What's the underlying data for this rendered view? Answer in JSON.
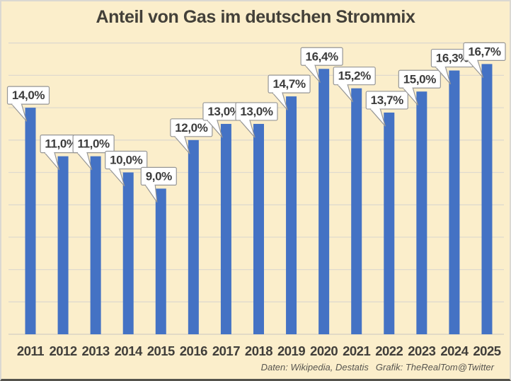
{
  "title": "Anteil von Gas im deutschen Strommix",
  "footer": {
    "data_credit": "Daten: Wikipedia, Destatis",
    "graphic_credit": "Grafik: TheRealTom@Twitter"
  },
  "colors": {
    "background": "#FBEECB",
    "bar": "#4472C4",
    "grid": "#DFDACE",
    "axis_line": "#D4CFC2",
    "text": "#403E3A",
    "callout_bg": "#FFFFFF",
    "callout_border": "#969696",
    "callout_text": "#3C3C3C",
    "frame_border": "#DBD8D2",
    "frame_border_bottom": "#54524C"
  },
  "chart_data": {
    "type": "bar",
    "title": "Anteil von Gas im deutschen Strommix",
    "categories": [
      "2011",
      "2012",
      "2013",
      "2014",
      "2015",
      "2016",
      "2017",
      "2018",
      "2019",
      "2020",
      "2021",
      "2022",
      "2023",
      "2024",
      "2025"
    ],
    "values": [
      14.0,
      11.0,
      11.0,
      10.0,
      9.0,
      12.0,
      13.0,
      13.0,
      14.7,
      16.4,
      15.2,
      13.7,
      15.0,
      16.3,
      16.7
    ],
    "value_labels": [
      "14,0%",
      "11,0%",
      "11,0%",
      "10,0%",
      "9,0%",
      "12,0%",
      "13,0%",
      "13,0%",
      "14,7%",
      "16,4%",
      "15,2%",
      "13,7%",
      "15,0%",
      "16,3%",
      "16,7%"
    ],
    "unit": "%",
    "xlabel": "",
    "ylabel": "",
    "ylim": [
      0,
      18
    ],
    "grid_step": 2,
    "gridlines": "horizontal",
    "legend": false,
    "value_label_style": "white-callout-boxes-with-pointer"
  }
}
